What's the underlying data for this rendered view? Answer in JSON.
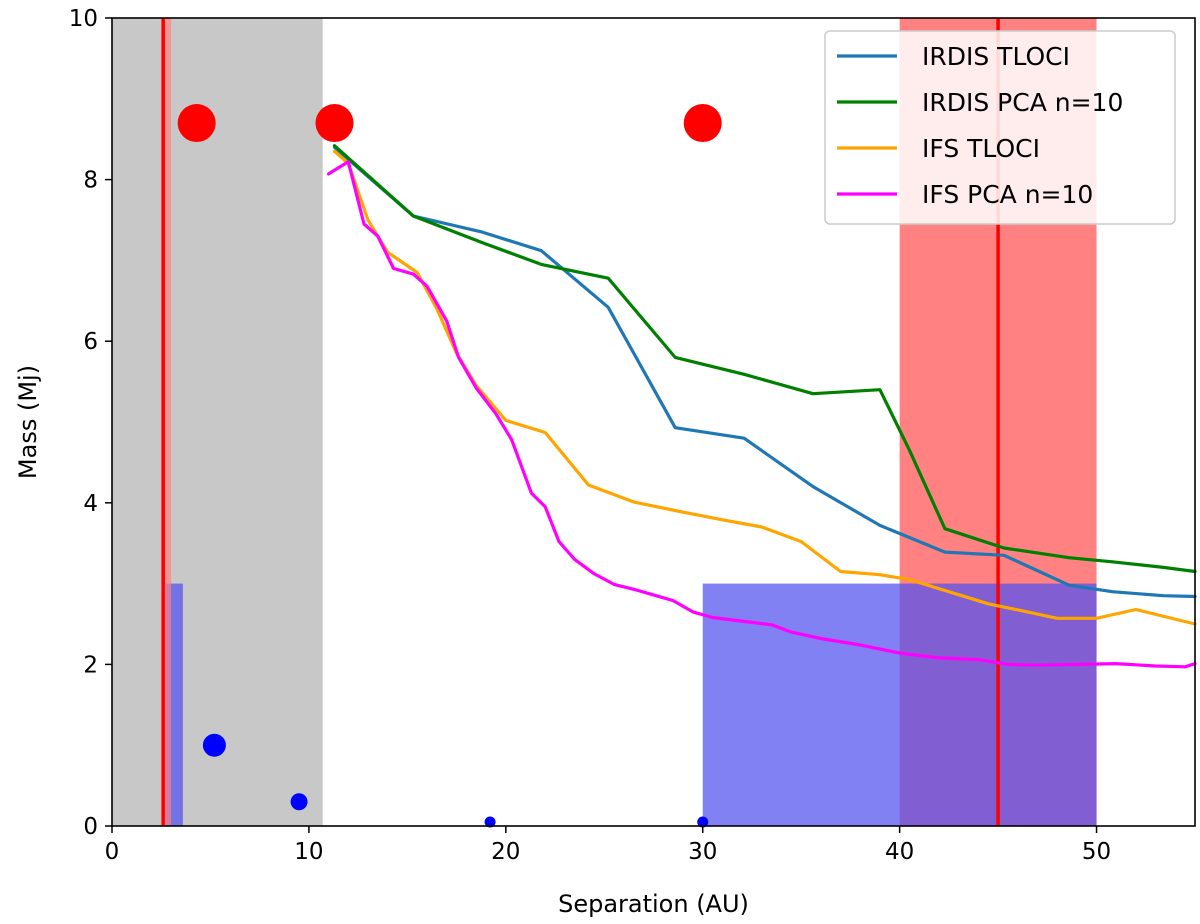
{
  "chart_data": {
    "type": "line",
    "title": "",
    "xlabel": "Separation (AU)",
    "ylabel": "Mass (Mj)",
    "xlim": [
      0,
      55
    ],
    "ylim": [
      0,
      10
    ],
    "xticks": [
      "0",
      "10",
      "20",
      "30",
      "40",
      "50"
    ],
    "yticks": [
      "0",
      "2",
      "4",
      "6",
      "8",
      "10"
    ],
    "grid": false,
    "legend_position": "top-right",
    "series": [
      {
        "name": "IRDIS TLOCI",
        "color": "#1f77b4",
        "points": [
          [
            11.3,
            8.4
          ],
          [
            15.3,
            7.55
          ],
          [
            18.8,
            7.35
          ],
          [
            21.8,
            7.12
          ],
          [
            25.2,
            6.42
          ],
          [
            28.6,
            4.93
          ],
          [
            32.1,
            4.8
          ],
          [
            35.6,
            4.2
          ],
          [
            39,
            3.72
          ],
          [
            42.3,
            3.39
          ],
          [
            45.3,
            3.35
          ],
          [
            48.6,
            2.98
          ],
          [
            50.8,
            2.9
          ],
          [
            53.4,
            2.85
          ],
          [
            55,
            2.84
          ]
        ]
      },
      {
        "name": "IRDIS PCA n=10",
        "color": "#008000",
        "points": [
          [
            11.3,
            8.42
          ],
          [
            15.3,
            7.55
          ],
          [
            18.8,
            7.22
          ],
          [
            21.8,
            6.95
          ],
          [
            25.2,
            6.78
          ],
          [
            28.6,
            5.8
          ],
          [
            32.1,
            5.59
          ],
          [
            35.6,
            5.35
          ],
          [
            39,
            5.4
          ],
          [
            40.5,
            4.65
          ],
          [
            42.3,
            3.68
          ],
          [
            45.3,
            3.44
          ],
          [
            48.6,
            3.32
          ],
          [
            50.8,
            3.27
          ],
          [
            53.4,
            3.2
          ],
          [
            55,
            3.15
          ]
        ]
      },
      {
        "name": "IFS TLOCI",
        "color": "#ffa500",
        "points": [
          [
            11.3,
            8.35
          ],
          [
            12,
            8.2
          ],
          [
            13,
            7.5
          ],
          [
            14,
            7.1
          ],
          [
            15.5,
            6.85
          ],
          [
            16.5,
            6.4
          ],
          [
            17.5,
            5.85
          ],
          [
            18.5,
            5.45
          ],
          [
            20,
            5.02
          ],
          [
            22,
            4.87
          ],
          [
            24.2,
            4.22
          ],
          [
            26.5,
            4.01
          ],
          [
            28.7,
            3.9
          ],
          [
            31,
            3.79
          ],
          [
            33,
            3.7
          ],
          [
            35,
            3.52
          ],
          [
            37,
            3.15
          ],
          [
            39,
            3.11
          ],
          [
            40.5,
            3.05
          ],
          [
            42.5,
            2.9
          ],
          [
            44.5,
            2.75
          ],
          [
            46.5,
            2.65
          ],
          [
            48,
            2.57
          ],
          [
            50,
            2.57
          ],
          [
            52,
            2.68
          ],
          [
            55,
            2.5
          ]
        ]
      },
      {
        "name": "IFS PCA n=10",
        "color": "#ff00ff",
        "points": [
          [
            11,
            8.07
          ],
          [
            12,
            8.22
          ],
          [
            12.8,
            7.45
          ],
          [
            13.5,
            7.3
          ],
          [
            14.3,
            6.9
          ],
          [
            15.3,
            6.83
          ],
          [
            16,
            6.68
          ],
          [
            17,
            6.25
          ],
          [
            17.6,
            5.8
          ],
          [
            18.5,
            5.42
          ],
          [
            19.5,
            5.1
          ],
          [
            20.3,
            4.78
          ],
          [
            21.3,
            4.12
          ],
          [
            22,
            3.95
          ],
          [
            22.7,
            3.52
          ],
          [
            23.5,
            3.3
          ],
          [
            24.5,
            3.12
          ],
          [
            25.5,
            2.99
          ],
          [
            26.5,
            2.93
          ],
          [
            27.5,
            2.86
          ],
          [
            28.5,
            2.79
          ],
          [
            29.5,
            2.65
          ],
          [
            30.5,
            2.58
          ],
          [
            31.5,
            2.55
          ],
          [
            32.5,
            2.52
          ],
          [
            33.5,
            2.49
          ],
          [
            34.5,
            2.4
          ],
          [
            36,
            2.32
          ],
          [
            38,
            2.24
          ],
          [
            40,
            2.14
          ],
          [
            42,
            2.08
          ],
          [
            44,
            2.06
          ],
          [
            45.5,
            2.0
          ],
          [
            47,
            1.99
          ],
          [
            49,
            2.0
          ],
          [
            51,
            2.01
          ],
          [
            53,
            1.98
          ],
          [
            54.5,
            1.97
          ],
          [
            55,
            2.01
          ]
        ]
      }
    ],
    "shaded_regions": [
      {
        "kind": "excluded-inner",
        "x_range": [
          0,
          10.7
        ],
        "y_range": [
          0,
          10
        ],
        "color": "#c8c8c8"
      },
      {
        "kind": "red-band",
        "x_range": [
          40,
          50
        ],
        "y_range": [
          0,
          10
        ],
        "color": "#ff7070"
      },
      {
        "kind": "blue-box-outer",
        "x_range": [
          30,
          50
        ],
        "y_range": [
          0,
          3
        ],
        "color": "#5050f0"
      },
      {
        "kind": "blue-box-inner",
        "x_range": [
          2.7,
          3.6
        ],
        "y_range": [
          0,
          3
        ],
        "color": "#5050f0"
      },
      {
        "kind": "red-band-narrow",
        "x_range": [
          2.5,
          3.0
        ],
        "y_range": [
          0,
          10
        ],
        "color": "#ff8080"
      }
    ],
    "vertical_lines": [
      {
        "x": 2.6,
        "color": "#ff0000"
      },
      {
        "x": 45,
        "color": "#ff0000"
      }
    ],
    "red_points": [
      {
        "x": 4.3,
        "y": 8.7
      },
      {
        "x": 11.3,
        "y": 8.7
      },
      {
        "x": 30,
        "y": 8.7
      }
    ],
    "blue_points": [
      {
        "x": 5.2,
        "y": 1.0,
        "size": "medium"
      },
      {
        "x": 9.5,
        "y": 0.3,
        "size": "small"
      },
      {
        "x": 19.2,
        "y": 0.05,
        "size": "tiny"
      },
      {
        "x": 30.0,
        "y": 0.05,
        "size": "tiny"
      }
    ]
  }
}
